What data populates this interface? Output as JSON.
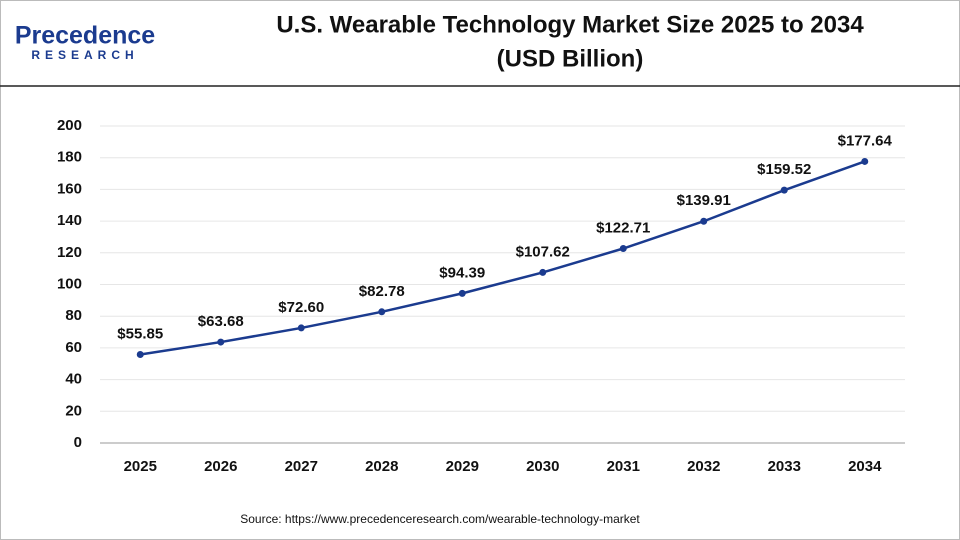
{
  "chart_data": {
    "type": "line",
    "title": "U.S. Wearable Technology Market Size 2025 to 2034",
    "subtitle": "(USD Billion)",
    "logo": {
      "name": "Precedence",
      "tagline": "RESEARCH"
    },
    "source": "Source: https://www.precedenceresearch.com/wearable-technology-market",
    "categories": [
      "2025",
      "2026",
      "2027",
      "2028",
      "2029",
      "2030",
      "2031",
      "2032",
      "2033",
      "2034"
    ],
    "values": [
      55.85,
      63.68,
      72.6,
      82.78,
      94.39,
      107.62,
      122.71,
      139.91,
      159.52,
      177.64
    ],
    "value_labels": [
      "$55.85",
      "$63.68",
      "$72.60",
      "$82.78",
      "$94.39",
      "$107.62",
      "$122.71",
      "$139.91",
      "$159.52",
      "$177.64"
    ],
    "color": "#1b3b8f",
    "ylim": [
      0,
      200
    ],
    "yticks": [
      0,
      20,
      40,
      60,
      80,
      100,
      120,
      140,
      160,
      180,
      200
    ],
    "grid": true
  }
}
